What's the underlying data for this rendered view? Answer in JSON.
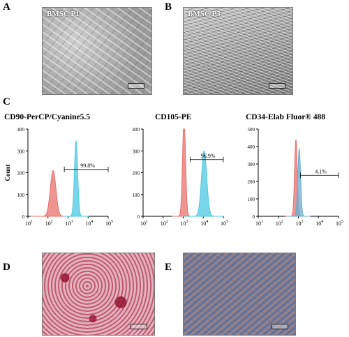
{
  "panels": {
    "A": {
      "letter": "A",
      "label": "BMSC P1"
    },
    "B": {
      "letter": "B",
      "label": "BMSC P3"
    },
    "C": {
      "letter": "C"
    },
    "D": {
      "letter": "D"
    },
    "E": {
      "letter": "E"
    }
  },
  "chart_data": [
    {
      "type": "area",
      "title": "CD90-PerCP/Cyanine5.5",
      "ylabel": "Count",
      "xscale": "log",
      "xlim": [
        10,
        100000
      ],
      "ylim": [
        0,
        400
      ],
      "yticks": [
        0,
        100,
        200,
        300,
        400
      ],
      "xticks_exp": [
        1,
        2,
        3,
        4,
        5
      ],
      "series": [
        {
          "color": "#e8706c",
          "peak_x": 180,
          "peak_y": 210,
          "width": 0.28
        },
        {
          "color": "#4cc8e0",
          "peak_x": 2500,
          "peak_y": 345,
          "width": 0.16
        }
      ],
      "gate": {
        "from": 650,
        "to": 100000,
        "y": 215,
        "label": "99.8%"
      }
    },
    {
      "type": "area",
      "title": "CD105-PE",
      "ylabel": "",
      "xscale": "log",
      "xlim": [
        10,
        100000
      ],
      "ylim": [
        0,
        400
      ],
      "yticks": [
        0,
        100,
        200,
        300,
        400
      ],
      "xticks_exp": [
        1,
        2,
        3,
        4,
        5
      ],
      "series": [
        {
          "color": "#e8706c",
          "peak_x": 1100,
          "peak_y": 445,
          "width": 0.15
        },
        {
          "color": "#4cc8e0",
          "peak_x": 11000,
          "peak_y": 300,
          "width": 0.26
        }
      ],
      "gate": {
        "from": 2200,
        "to": 100000,
        "y": 260,
        "label": "96.9%"
      }
    },
    {
      "type": "area",
      "title": "CD34-Elab Fluor® 488",
      "ylabel": "",
      "xscale": "log",
      "xlim": [
        10,
        100000
      ],
      "ylim": [
        0,
        500
      ],
      "yticks": [
        0,
        100,
        200,
        300,
        400,
        500
      ],
      "xticks_exp": [
        1,
        2,
        3,
        4,
        5
      ],
      "series": [
        {
          "color": "#e8706c",
          "peak_x": 750,
          "peak_y": 440,
          "width": 0.13
        },
        {
          "color": "#6aaed0",
          "peak_x": 1100,
          "peak_y": 385,
          "width": 0.14
        }
      ],
      "gate": {
        "from": 1250,
        "to": 100000,
        "y": 235,
        "label": "4.1%"
      }
    }
  ]
}
